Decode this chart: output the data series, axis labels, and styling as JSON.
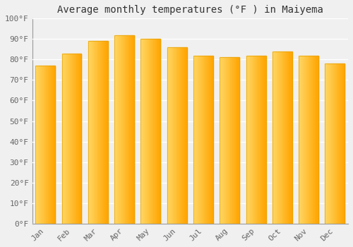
{
  "months": [
    "Jan",
    "Feb",
    "Mar",
    "Apr",
    "May",
    "Jun",
    "Jul",
    "Aug",
    "Sep",
    "Oct",
    "Nov",
    "Dec"
  ],
  "values": [
    77,
    83,
    89,
    92,
    90,
    86,
    82,
    81,
    82,
    84,
    82,
    78
  ],
  "bar_color_left": "#FFD966",
  "bar_color_right": "#FFA500",
  "bar_edge_color": "#E8A000",
  "title": "Average monthly temperatures (°F ) in Maiyema",
  "ylim": [
    0,
    100
  ],
  "yticks": [
    0,
    10,
    20,
    30,
    40,
    50,
    60,
    70,
    80,
    90,
    100
  ],
  "ytick_labels": [
    "0°F",
    "10°F",
    "20°F",
    "30°F",
    "40°F",
    "50°F",
    "60°F",
    "70°F",
    "80°F",
    "90°F",
    "100°F"
  ],
  "background_color": "#f0f0f0",
  "plot_bg_color": "#f0f0f0",
  "grid_color": "#ffffff",
  "title_fontsize": 10,
  "tick_fontsize": 8,
  "bar_width": 0.75
}
